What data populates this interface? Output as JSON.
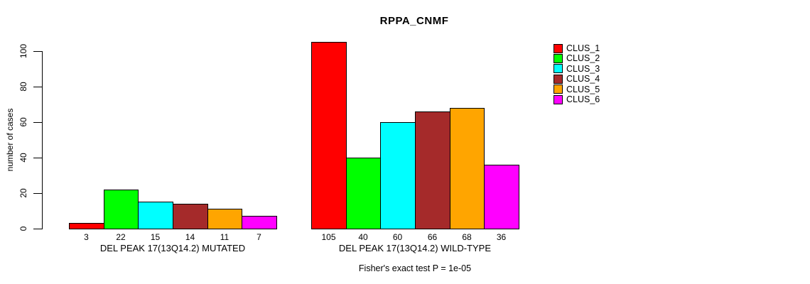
{
  "title": "RPPA_CNMF",
  "chart_data": {
    "type": "bar",
    "title": "RPPA_CNMF",
    "xlabel": "",
    "ylabel": "number of cases",
    "ylim": [
      0,
      110
    ],
    "yticks": [
      0,
      20,
      40,
      60,
      80,
      100
    ],
    "grid": false,
    "legend_position": "right",
    "series_colors": [
      "#FF0000",
      "#00FF00",
      "#00FFFF",
      "#A52A2A",
      "#FFA500",
      "#FF00FF"
    ],
    "legend": [
      {
        "label": "CLUS_1",
        "color": "#FF0000"
      },
      {
        "label": "CLUS_2",
        "color": "#00FF00"
      },
      {
        "label": "CLUS_3",
        "color": "#00FFFF"
      },
      {
        "label": "CLUS_4",
        "color": "#A52A2A"
      },
      {
        "label": "CLUS_5",
        "color": "#FFA500"
      },
      {
        "label": "CLUS_6",
        "color": "#FF00FF"
      }
    ],
    "groups": [
      {
        "label": "DEL PEAK 17(13Q14.2) MUTATED",
        "values": [
          3,
          22,
          15,
          14,
          11,
          7
        ]
      },
      {
        "label": "DEL PEAK 17(13Q14.2) WILD-TYPE",
        "values": [
          105,
          40,
          60,
          66,
          68,
          36
        ]
      }
    ],
    "footnote": "Fisher's exact test P = 1e-05"
  }
}
